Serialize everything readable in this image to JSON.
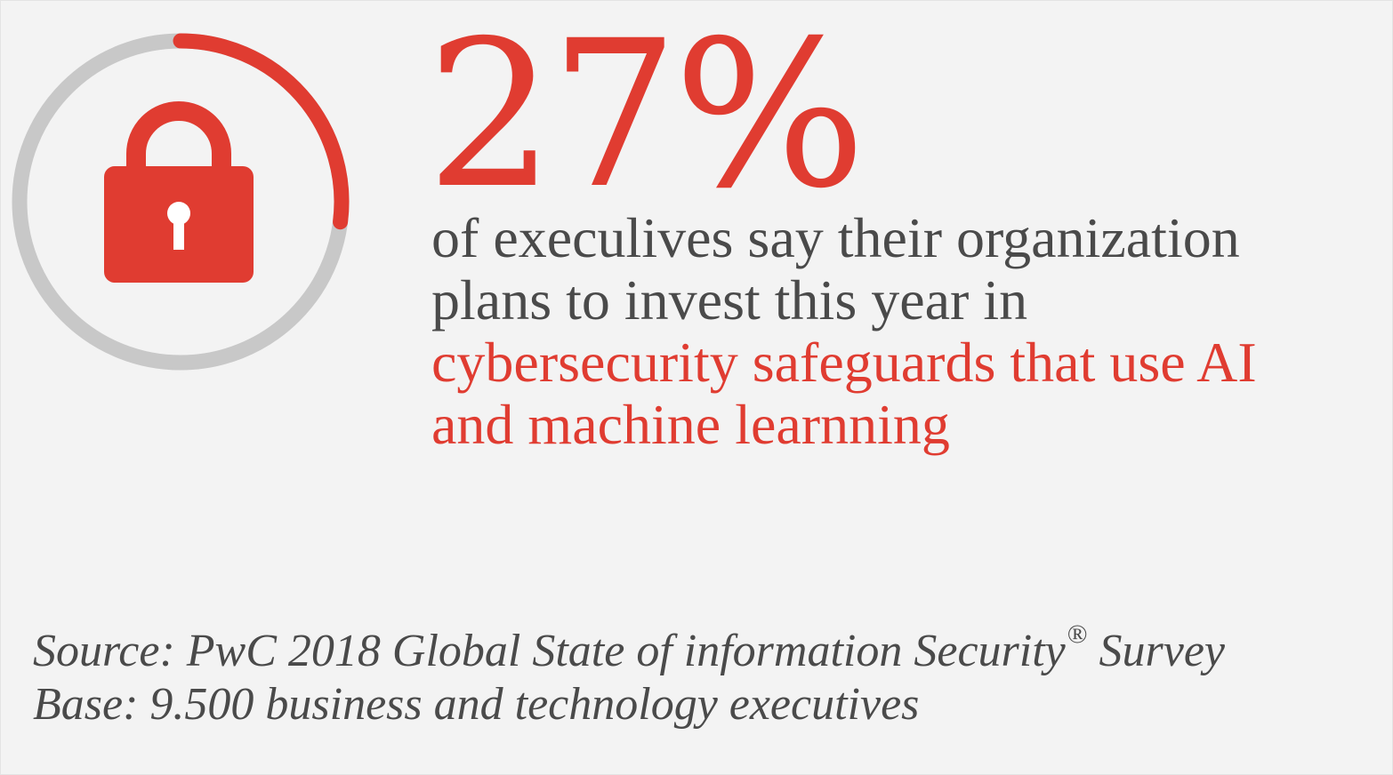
{
  "colors": {
    "accent": "#e03c31",
    "track": "#c8c8c8",
    "text": "#4a4a4a",
    "background": "#f3f3f3"
  },
  "gauge": {
    "icon": "padlock-icon",
    "value_fraction": 0.27
  },
  "stat": {
    "value": "27%"
  },
  "statement": {
    "line1": "of execulives say their organization",
    "line2": "plans to invest this year in",
    "highlight_line1": "cybersecurity safeguards that use AI",
    "highlight_line2": "and machine learnning"
  },
  "source": {
    "line1_prefix": "Source: PwC 2018 Global State of information Security",
    "registered_mark": "®",
    "line1_suffix": " Survey",
    "line2": "Base: 9.500 business and technology executives"
  }
}
